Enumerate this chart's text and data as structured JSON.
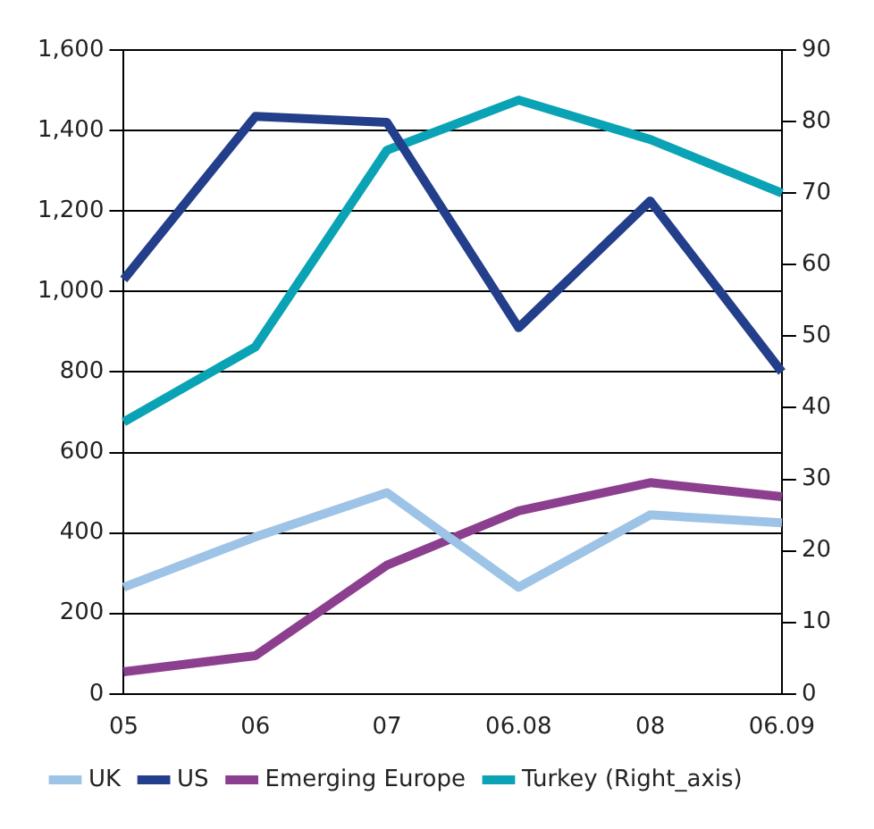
{
  "chart_data": {
    "type": "line",
    "categories": [
      "05",
      "06",
      "07",
      "06.08",
      "08",
      "06.09"
    ],
    "series": [
      {
        "name": "UK",
        "color": "#9dc3e6",
        "values": [
          265,
          390,
          500,
          265,
          445,
          425
        ]
      },
      {
        "name": "US",
        "color": "#233e8b",
        "values": [
          1030,
          1435,
          1420,
          910,
          1225,
          800
        ]
      },
      {
        "name": "Emerging Europe",
        "color": "#8b3f8e",
        "values": [
          55,
          95,
          320,
          455,
          525,
          490
        ]
      },
      {
        "name": "Turkey (Right_axis)",
        "color": "#0aa3b5",
        "values": [
          38,
          48.5,
          76,
          83,
          77.5,
          70
        ],
        "axis": "y2"
      }
    ],
    "ylim": [
      0,
      1600
    ],
    "yticks": [
      {
        "value": 0,
        "label": "0"
      },
      {
        "value": 200,
        "label": "200"
      },
      {
        "value": 400,
        "label": "400"
      },
      {
        "value": 600,
        "label": "600"
      },
      {
        "value": 800,
        "label": "800"
      },
      {
        "value": 1000,
        "label": "1,000"
      },
      {
        "value": 1200,
        "label": "1,200"
      },
      {
        "value": 1400,
        "label": "1,400"
      },
      {
        "value": 1600,
        "label": "1,600"
      }
    ],
    "y2lim": [
      0,
      90
    ],
    "y2ticks": [
      0,
      10,
      20,
      30,
      40,
      50,
      60,
      70,
      80,
      90
    ],
    "grid": "y",
    "legend": "bottom",
    "marker": "none",
    "line_style": "solid"
  }
}
